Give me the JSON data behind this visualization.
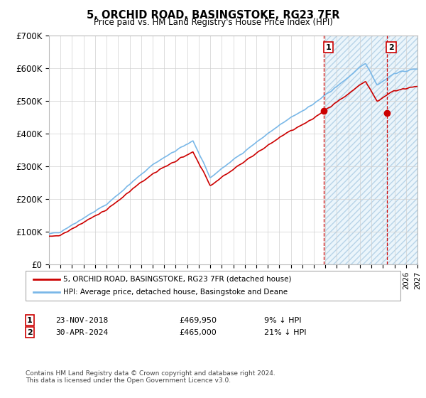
{
  "title": "5, ORCHID ROAD, BASINGSTOKE, RG23 7FR",
  "subtitle": "Price paid vs. HM Land Registry's House Price Index (HPI)",
  "hpi_color": "#7ab8e8",
  "price_color": "#cc0000",
  "ylim": [
    0,
    700000
  ],
  "yticks": [
    0,
    100000,
    200000,
    300000,
    400000,
    500000,
    600000,
    700000
  ],
  "ytick_labels": [
    "£0",
    "£100K",
    "£200K",
    "£300K",
    "£400K",
    "£500K",
    "£600K",
    "£700K"
  ],
  "p1_year_float": 2018.88,
  "p1_price": 469950,
  "p2_year_float": 2024.33,
  "p2_price": 465000,
  "hatch_start": 2019.0,
  "xlim": [
    1995,
    2027
  ],
  "legend_property": "5, ORCHID ROAD, BASINGSTOKE, RG23 7FR (detached house)",
  "legend_hpi": "HPI: Average price, detached house, Basingstoke and Deane",
  "row1_label": "1",
  "row1_date": "23-NOV-2018",
  "row1_price": "£469,950",
  "row1_pct": "9% ↓ HPI",
  "row2_label": "2",
  "row2_date": "30-APR-2024",
  "row2_price": "£465,000",
  "row2_pct": "21% ↓ HPI",
  "footer": "Contains HM Land Registry data © Crown copyright and database right 2024.\nThis data is licensed under the Open Government Licence v3.0."
}
